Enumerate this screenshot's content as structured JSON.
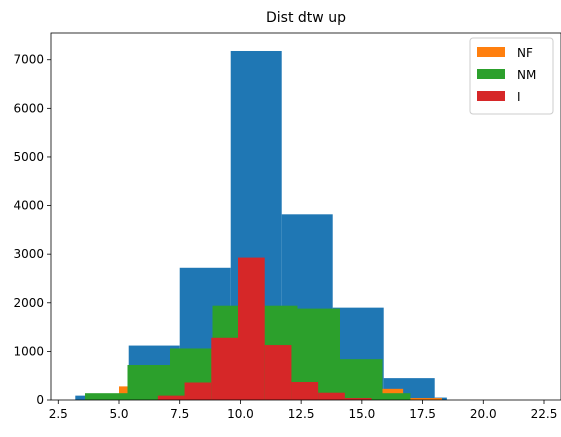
{
  "chart_data": {
    "type": "bar",
    "title": "Dist dtw up",
    "xlabel": "",
    "ylabel": "",
    "xlim": [
      2.2,
      23.2
    ],
    "ylim": [
      0,
      7550
    ],
    "xticks": [
      2.5,
      5.0,
      7.5,
      10.0,
      12.5,
      15.0,
      17.5,
      20.0,
      22.5
    ],
    "xtick_labels": [
      "2.5",
      "5.0",
      "7.5",
      "10.0",
      "12.5",
      "15.0",
      "17.5",
      "20.0",
      "22.5"
    ],
    "yticks": [
      0,
      1000,
      2000,
      3000,
      4000,
      5000,
      6000,
      7000
    ],
    "ytick_labels": [
      "0",
      "1000",
      "2000",
      "3000",
      "4000",
      "5000",
      "6000",
      "7000"
    ],
    "grid": false,
    "legend_position": "top-right",
    "legend": [
      "NF",
      "NM",
      "I"
    ],
    "series": [
      {
        "color": "#1f77b4",
        "bins": [
          {
            "x0": 3.2,
            "x1": 3.65,
            "value": 90
          },
          {
            "x0": 5.4,
            "x1": 7.5,
            "value": 1120
          },
          {
            "x0": 7.5,
            "x1": 9.6,
            "value": 2720
          },
          {
            "x0": 9.6,
            "x1": 11.7,
            "value": 7180
          },
          {
            "x0": 11.7,
            "x1": 13.8,
            "value": 3820
          },
          {
            "x0": 13.8,
            "x1": 15.9,
            "value": 1900
          },
          {
            "x0": 15.9,
            "x1": 18.0,
            "value": 450
          },
          {
            "x0": 18.0,
            "x1": 18.5,
            "value": 50
          }
        ]
      },
      {
        "name": "NF",
        "color": "#ff7f0e",
        "bins": [
          {
            "x0": 5.0,
            "x1": 5.6,
            "value": 280
          },
          {
            "x0": 15.0,
            "x1": 16.7,
            "value": 230
          },
          {
            "x0": 16.7,
            "x1": 18.3,
            "value": 40
          }
        ]
      },
      {
        "name": "NM",
        "color": "#2ca02c",
        "bins": [
          {
            "x0": 3.6,
            "x1": 5.35,
            "value": 140
          },
          {
            "x0": 5.35,
            "x1": 7.1,
            "value": 720
          },
          {
            "x0": 7.1,
            "x1": 8.85,
            "value": 1060
          },
          {
            "x0": 8.85,
            "x1": 10.6,
            "value": 1940
          },
          {
            "x0": 10.6,
            "x1": 12.35,
            "value": 1940
          },
          {
            "x0": 12.35,
            "x1": 14.1,
            "value": 1880
          },
          {
            "x0": 14.1,
            "x1": 15.85,
            "value": 840
          },
          {
            "x0": 15.85,
            "x1": 17.0,
            "value": 140
          }
        ]
      },
      {
        "name": "I",
        "color": "#d62728",
        "bins": [
          {
            "x0": 6.6,
            "x1": 7.7,
            "value": 90
          },
          {
            "x0": 7.7,
            "x1": 8.8,
            "value": 360
          },
          {
            "x0": 8.8,
            "x1": 9.9,
            "value": 1280
          },
          {
            "x0": 9.9,
            "x1": 11.0,
            "value": 2930
          },
          {
            "x0": 11.0,
            "x1": 12.1,
            "value": 1130
          },
          {
            "x0": 12.1,
            "x1": 13.2,
            "value": 370
          },
          {
            "x0": 13.2,
            "x1": 14.3,
            "value": 150
          },
          {
            "x0": 14.3,
            "x1": 15.4,
            "value": 40
          }
        ]
      }
    ]
  }
}
